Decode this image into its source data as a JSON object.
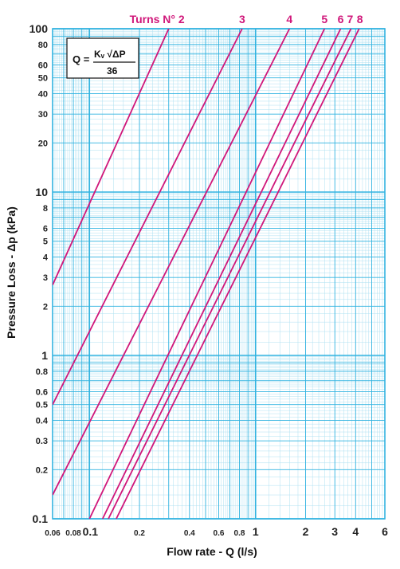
{
  "chart_data": {
    "type": "line",
    "title": "",
    "xlabel": "Flow rate - Q (l/s)",
    "ylabel": "Pressure Loss - Δp (kPa)",
    "x_scale": "log",
    "y_scale": "log",
    "xlim": [
      0.06,
      6
    ],
    "ylim": [
      0.1,
      100
    ],
    "grid": true,
    "x_ticks": [
      {
        "v": 0.06,
        "label": "0.06",
        "size": "small"
      },
      {
        "v": 0.08,
        "label": "0.08",
        "size": "small"
      },
      {
        "v": 0.1,
        "label": "0.1",
        "size": "large"
      },
      {
        "v": 0.2,
        "label": "0.2",
        "size": "small"
      },
      {
        "v": 0.4,
        "label": "0.4",
        "size": "small"
      },
      {
        "v": 0.6,
        "label": "0.6",
        "size": "small"
      },
      {
        "v": 0.8,
        "label": "0.8",
        "size": "small"
      },
      {
        "v": 1,
        "label": "1",
        "size": "large"
      },
      {
        "v": 2,
        "label": "2",
        "size": "large"
      },
      {
        "v": 3,
        "label": "3",
        "size": "large"
      },
      {
        "v": 4,
        "label": "4",
        "size": "large"
      },
      {
        "v": 6,
        "label": "6",
        "size": "large"
      }
    ],
    "y_ticks": [
      {
        "v": 0.1,
        "label": "0.1",
        "size": "large"
      },
      {
        "v": 0.2,
        "label": "0.2",
        "size": "small"
      },
      {
        "v": 0.3,
        "label": "0.3",
        "size": "small"
      },
      {
        "v": 0.4,
        "label": "0.4",
        "size": "small"
      },
      {
        "v": 0.5,
        "label": "0.5",
        "size": "small"
      },
      {
        "v": 0.6,
        "label": "0.6",
        "size": "small"
      },
      {
        "v": 0.8,
        "label": "0.8",
        "size": "small"
      },
      {
        "v": 1,
        "label": "1",
        "size": "large"
      },
      {
        "v": 2,
        "label": "2",
        "size": "small"
      },
      {
        "v": 3,
        "label": "3",
        "size": "small"
      },
      {
        "v": 4,
        "label": "4",
        "size": "small"
      },
      {
        "v": 5,
        "label": "5",
        "size": "small"
      },
      {
        "v": 6,
        "label": "6",
        "size": "small"
      },
      {
        "v": 8,
        "label": "8",
        "size": "small"
      },
      {
        "v": 10,
        "label": "10",
        "size": "large"
      },
      {
        "v": 20,
        "label": "20",
        "size": "small"
      },
      {
        "v": 30,
        "label": "30",
        "size": "small"
      },
      {
        "v": 40,
        "label": "40",
        "size": "small"
      },
      {
        "v": 50,
        "label": "50",
        "size": "small"
      },
      {
        "v": 60,
        "label": "60",
        "size": "small"
      },
      {
        "v": 80,
        "label": "80",
        "size": "small"
      },
      {
        "v": 100,
        "label": "100",
        "size": "large"
      }
    ],
    "series": [
      {
        "name": "Turns N° 2",
        "points": [
          [
            0.06,
            2.7
          ],
          [
            0.3,
            100
          ]
        ]
      },
      {
        "name": "3",
        "points": [
          [
            0.06,
            0.5
          ],
          [
            0.83,
            100
          ]
        ]
      },
      {
        "name": "4",
        "points": [
          [
            0.06,
            0.14
          ],
          [
            1.6,
            100
          ]
        ]
      },
      {
        "name": "5",
        "points": [
          [
            0.1,
            0.1
          ],
          [
            2.6,
            100
          ]
        ]
      },
      {
        "name": "6",
        "points": [
          [
            0.12,
            0.1
          ],
          [
            3.25,
            100
          ]
        ]
      },
      {
        "name": "7",
        "points": [
          [
            0.13,
            0.1
          ],
          [
            3.75,
            100
          ]
        ]
      },
      {
        "name": "8",
        "points": [
          [
            0.145,
            0.1
          ],
          [
            4.2,
            100
          ]
        ]
      }
    ],
    "annotations": {
      "formula": {
        "lhs": "Q =",
        "numerator": "Kᵥ √ΔP",
        "denominator": "36"
      }
    }
  },
  "colors": {
    "grid": "#31b3e0",
    "grid_fine": "#aee0f2",
    "series": "#d0177a",
    "text": "#111111"
  }
}
